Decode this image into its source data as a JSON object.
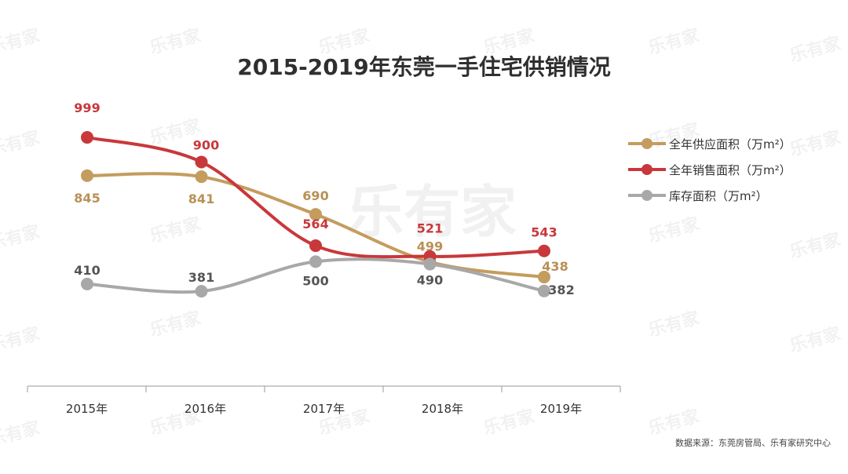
{
  "chart_data": {
    "type": "line",
    "title": "2015-2019年东莞一手住宅供销情况",
    "categories": [
      "2015年",
      "2016年",
      "2017年",
      "2018年",
      "2019年"
    ],
    "series": [
      {
        "name": "全年供应面积（万m²）",
        "values": [
          845,
          841,
          690,
          499,
          438
        ],
        "color": "#c49c5e",
        "label_color": "#b89156"
      },
      {
        "name": "全年销售面积（万m²）",
        "values": [
          999,
          900,
          564,
          521,
          543
        ],
        "color": "#c8383b",
        "label_color": "#c8383b"
      },
      {
        "name": "库存面积（万m²）",
        "values": [
          410,
          381,
          500,
          490,
          382
        ],
        "color": "#a8a8a8",
        "label_color": "#555555"
      }
    ],
    "xlabel": "",
    "ylabel": "",
    "ylim": [
      0,
      1100
    ],
    "y_axis_visible": false,
    "grid": false,
    "smooth": true,
    "legend_position": "right",
    "source": "数据来源：东莞房管局、乐有家研究中心"
  },
  "watermark": "乐有家"
}
